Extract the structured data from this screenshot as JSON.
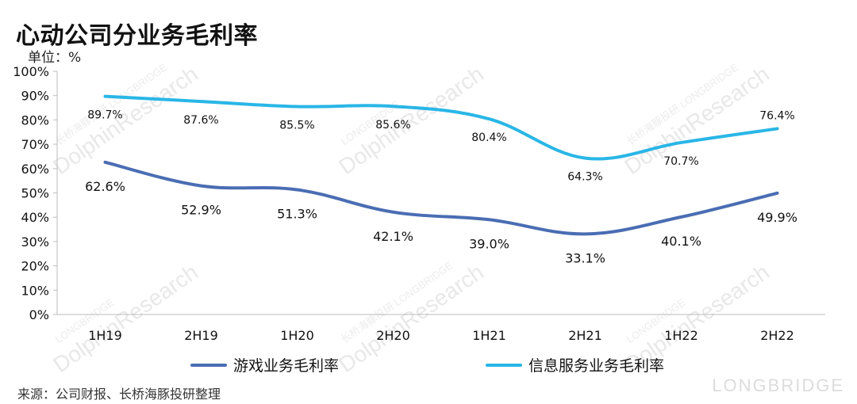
{
  "title": "心动公司分业务毛利率",
  "unit_label": "单位：%",
  "source": "来源：公司财报、长桥海豚投研整理",
  "watermark": {
    "text": "DolphinResearch",
    "cn_text": "长桥海豚投研",
    "sub_text": "LONGBRIDGE",
    "brand": "LONGBRIDGE"
  },
  "colors": {
    "game": "#4a6db3",
    "info": "#29b6e6"
  },
  "chart_data": {
    "type": "line",
    "categories": [
      "1H19",
      "2H19",
      "1H20",
      "2H20",
      "1H21",
      "2H21",
      "1H22",
      "2H22"
    ],
    "ylim": [
      0,
      100
    ],
    "yticks": [
      "0%",
      "10%",
      "20%",
      "30%",
      "40%",
      "50%",
      "60%",
      "70%",
      "80%",
      "90%",
      "100%"
    ],
    "series": [
      {
        "name": "游戏业务毛利率",
        "values": [
          62.6,
          52.9,
          51.3,
          42.1,
          39.0,
          33.1,
          40.1,
          49.9
        ],
        "labels": [
          "62.6%",
          "52.9%",
          "51.3%",
          "42.1%",
          "39.0%",
          "33.1%",
          "40.1%",
          "49.9%"
        ]
      },
      {
        "name": "信息服务业务毛利率",
        "values": [
          89.7,
          87.6,
          85.5,
          85.6,
          80.4,
          64.3,
          70.7,
          76.4
        ],
        "labels": [
          "89.7%",
          "87.6%",
          "85.5%",
          "85.6%",
          "80.4%",
          "64.3%",
          "70.7%",
          "76.4%"
        ]
      }
    ],
    "legend_position": "bottom",
    "grid": false
  }
}
